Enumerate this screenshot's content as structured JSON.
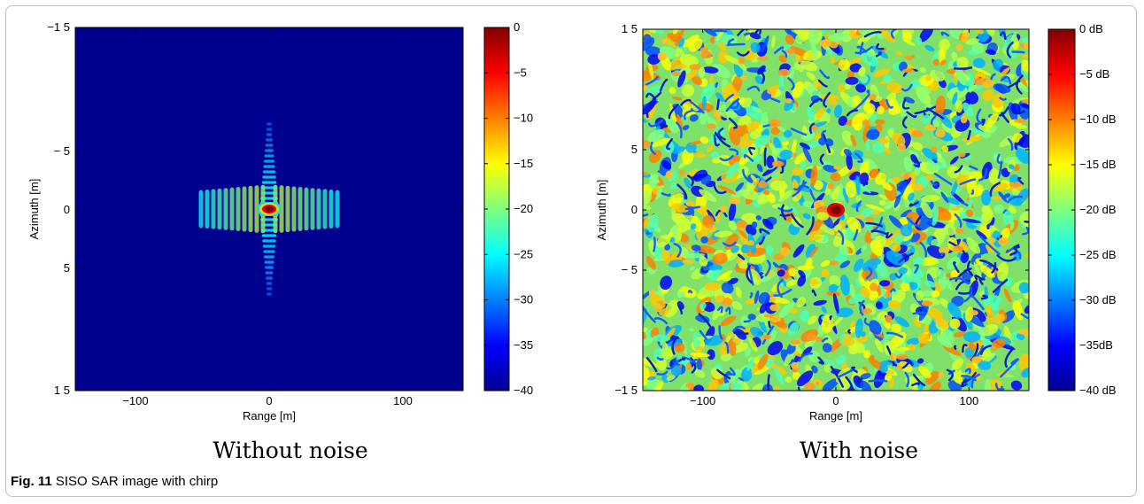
{
  "figure": {
    "label": "Fig. 11",
    "caption": "SISO SAR image with chirp"
  },
  "chart_data": [
    {
      "type": "heatmap",
      "subcaption": "Without noise",
      "xlabel": "Range [m]",
      "ylabel": "Azimuth [m]",
      "x_ticks": [
        "−100",
        "0",
        "100"
      ],
      "x_tick_values": [
        -100,
        0,
        100
      ],
      "y_ticks": [
        "−1 5",
        "− 5",
        "0",
        "5",
        "1 5"
      ],
      "y_tick_values": [
        -15,
        -5,
        0,
        5,
        15
      ],
      "xlim": [
        -145,
        145
      ],
      "ylim": [
        -15,
        15
      ],
      "colorbar": {
        "ticks": [
          "0",
          "−5",
          "−10",
          "−15",
          "−20",
          "−25",
          "−30",
          "−35",
          "−40"
        ],
        "range": [
          -40,
          0
        ],
        "colormap": "jet"
      },
      "background_level_db": -40,
      "peak": {
        "x": 0,
        "y": 0,
        "value_db": 0
      }
    },
    {
      "type": "heatmap",
      "subcaption": "With noise",
      "xlabel": "Range [m]",
      "ylabel": "Azimuth [m]",
      "x_ticks": [
        "−100",
        "0",
        "100"
      ],
      "x_tick_values": [
        -100,
        0,
        100
      ],
      "y_ticks": [
        "1 5",
        "5",
        "0",
        "− 5",
        "−1 5"
      ],
      "y_tick_values": [
        15,
        5,
        0,
        -5,
        -15
      ],
      "xlim": [
        -145,
        145
      ],
      "ylim": [
        -15,
        15
      ],
      "colorbar": {
        "ticks": [
          "0 dB",
          "−5 dB",
          "−10 dB",
          "−15 dB",
          "−20 dB",
          "−25 dB",
          "−30 dB",
          "−35dB",
          "−40 dB"
        ],
        "range": [
          -40,
          0
        ],
        "colormap": "jet"
      },
      "background": "speckle noise",
      "peak": {
        "x": 0,
        "y": 0,
        "value_db": 0
      }
    }
  ]
}
